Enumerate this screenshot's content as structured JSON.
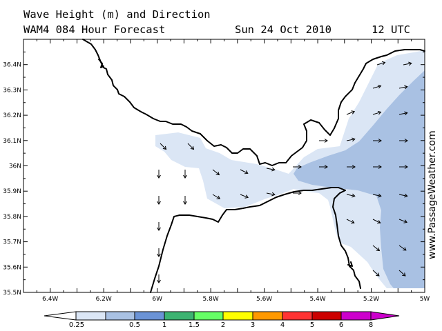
{
  "title": {
    "line1": "Wave Height (m) and Direction",
    "line2": "WAM4 084 Hour Forecast",
    "date": "Sun 24 Oct 2010",
    "time": "12 UTC"
  },
  "watermark": "www.PassageWeather.com",
  "map": {
    "x_ticks": [
      "6.4W",
      "6.2W",
      "6W",
      "5.8W",
      "5.6W",
      "5.4W",
      "5.2W",
      "5W"
    ],
    "y_ticks": [
      "36.4N",
      "36.3N",
      "36.2N",
      "36.1N",
      "36N",
      "35.9N",
      "35.8N",
      "35.7N",
      "35.6N",
      "35.5N"
    ],
    "lon_range": [
      -6.5,
      -5.0
    ],
    "lat_range": [
      35.5,
      36.5
    ],
    "fill_colors": {
      "wave_0_25_0_5": "#dbe6f5",
      "wave_0_5_1": "#a9c1e3"
    },
    "arrow_direction": "east / south-east"
  },
  "legend": {
    "labels": [
      "0.25",
      "0.5",
      "1",
      "1.5",
      "2",
      "3",
      "4",
      "5",
      "6",
      "8"
    ],
    "colors": [
      "#dbe6f5",
      "#a9c1e3",
      "#6b93d6",
      "#3cb371",
      "#66ff66",
      "#ffff00",
      "#ff9900",
      "#ff3333",
      "#cc0000",
      "#cc00cc"
    ]
  }
}
